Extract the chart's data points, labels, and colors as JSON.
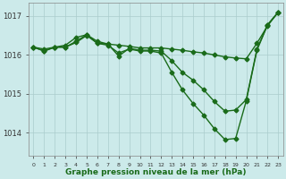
{
  "bg_color": "#cceaea",
  "grid_color": "#aacccc",
  "line_color": "#1a6b1a",
  "marker": "D",
  "markersize": 2.5,
  "linewidth": 1.0,
  "title": "Graphe pression niveau de la mer (hPa)",
  "xlabel_fontsize": 6.5,
  "xlim": [
    -0.5,
    23.5
  ],
  "ylim": [
    1013.4,
    1017.35
  ],
  "yticks": [
    1014,
    1015,
    1016,
    1017
  ],
  "xticks": [
    0,
    1,
    2,
    3,
    4,
    5,
    6,
    7,
    8,
    9,
    10,
    11,
    12,
    13,
    14,
    15,
    16,
    17,
    18,
    19,
    20,
    21,
    22,
    23
  ],
  "series": [
    [
      1016.2,
      1016.15,
      1016.2,
      1016.25,
      1016.45,
      1016.52,
      1016.35,
      1016.28,
      1016.25,
      1016.22,
      1016.18,
      1016.18,
      1016.18,
      1016.15,
      1016.12,
      1016.08,
      1016.05,
      1016.0,
      1015.95,
      1015.92,
      1015.9,
      1016.3,
      1016.75,
      1017.1
    ],
    [
      1016.2,
      1016.1,
      1016.2,
      1016.2,
      1016.35,
      1016.52,
      1016.3,
      1016.28,
      1015.97,
      1016.17,
      1016.12,
      1016.12,
      1016.1,
      1015.85,
      1015.55,
      1015.35,
      1015.1,
      1014.8,
      1014.55,
      1014.58,
      1014.85,
      1016.15,
      1016.78,
      1017.1
    ],
    [
      1016.2,
      1016.1,
      1016.2,
      1016.2,
      1016.32,
      1016.5,
      1016.3,
      1016.25,
      1016.05,
      1016.15,
      1016.1,
      1016.1,
      1016.05,
      1015.55,
      1015.1,
      1014.75,
      1014.45,
      1014.1,
      1013.82,
      1013.85,
      1014.82,
      1016.12,
      1016.77,
      1017.1
    ]
  ]
}
